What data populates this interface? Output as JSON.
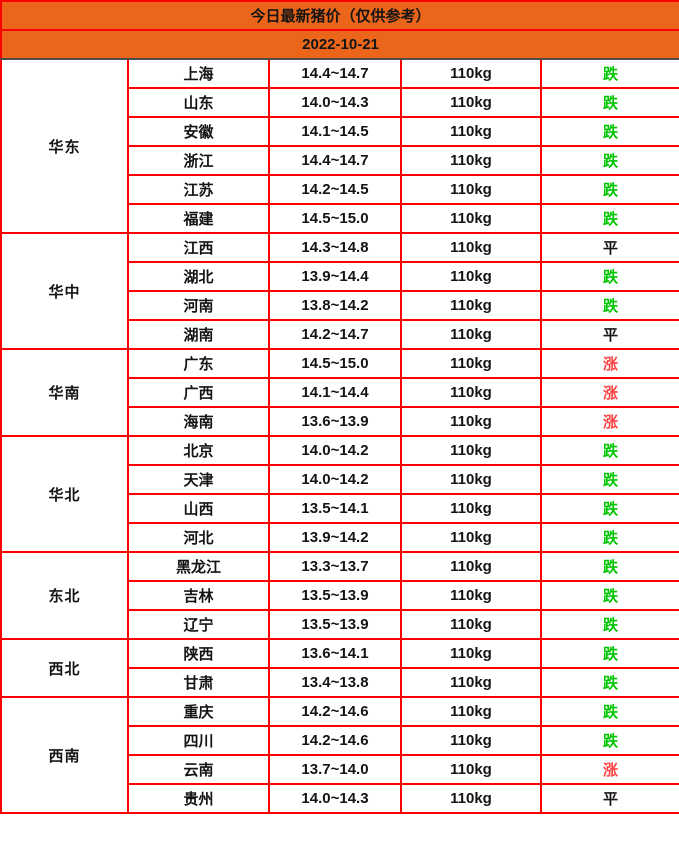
{
  "header": {
    "title": "今日最新猪价（仅供参考）",
    "date": "2022-10-21"
  },
  "colors": {
    "header_bg": "#EB661B",
    "border": "#FE0000",
    "date_divider": "#4D4D4D",
    "text": "#141414",
    "down": "#00C400",
    "up": "#FE4242",
    "flat": "#141414"
  },
  "chart_data": {
    "type": "table",
    "title": "今日最新猪价（仅供参考）",
    "date": "2022-10-21",
    "weight_unit": "110kg",
    "trend_legend": {
      "down": "跌",
      "up": "涨",
      "flat": "平"
    },
    "regions": [
      {
        "name": "华东",
        "rows": [
          {
            "province": "上海",
            "price": "14.4~14.7",
            "weight": "110kg",
            "trend": "跌",
            "trend_type": "down"
          },
          {
            "province": "山东",
            "price": "14.0~14.3",
            "weight": "110kg",
            "trend": "跌",
            "trend_type": "down"
          },
          {
            "province": "安徽",
            "price": "14.1~14.5",
            "weight": "110kg",
            "trend": "跌",
            "trend_type": "down"
          },
          {
            "province": "浙江",
            "price": "14.4~14.7",
            "weight": "110kg",
            "trend": "跌",
            "trend_type": "down"
          },
          {
            "province": "江苏",
            "price": "14.2~14.5",
            "weight": "110kg",
            "trend": "跌",
            "trend_type": "down"
          },
          {
            "province": "福建",
            "price": "14.5~15.0",
            "weight": "110kg",
            "trend": "跌",
            "trend_type": "down"
          }
        ]
      },
      {
        "name": "华中",
        "rows": [
          {
            "province": "江西",
            "price": "14.3~14.8",
            "weight": "110kg",
            "trend": "平",
            "trend_type": "flat"
          },
          {
            "province": "湖北",
            "price": "13.9~14.4",
            "weight": "110kg",
            "trend": "跌",
            "trend_type": "down"
          },
          {
            "province": "河南",
            "price": "13.8~14.2",
            "weight": "110kg",
            "trend": "跌",
            "trend_type": "down"
          },
          {
            "province": "湖南",
            "price": "14.2~14.7",
            "weight": "110kg",
            "trend": "平",
            "trend_type": "flat"
          }
        ]
      },
      {
        "name": "华南",
        "rows": [
          {
            "province": "广东",
            "price": "14.5~15.0",
            "weight": "110kg",
            "trend": "涨",
            "trend_type": "up"
          },
          {
            "province": "广西",
            "price": "14.1~14.4",
            "weight": "110kg",
            "trend": "涨",
            "trend_type": "up"
          },
          {
            "province": "海南",
            "price": "13.6~13.9",
            "weight": "110kg",
            "trend": "涨",
            "trend_type": "up"
          }
        ]
      },
      {
        "name": "华北",
        "rows": [
          {
            "province": "北京",
            "price": "14.0~14.2",
            "weight": "110kg",
            "trend": "跌",
            "trend_type": "down"
          },
          {
            "province": "天津",
            "price": "14.0~14.2",
            "weight": "110kg",
            "trend": "跌",
            "trend_type": "down"
          },
          {
            "province": "山西",
            "price": "13.5~14.1",
            "weight": "110kg",
            "trend": "跌",
            "trend_type": "down"
          },
          {
            "province": "河北",
            "price": "13.9~14.2",
            "weight": "110kg",
            "trend": "跌",
            "trend_type": "down"
          }
        ]
      },
      {
        "name": "东北",
        "rows": [
          {
            "province": "黑龙江",
            "price": "13.3~13.7",
            "weight": "110kg",
            "trend": "跌",
            "trend_type": "down"
          },
          {
            "province": "吉林",
            "price": "13.5~13.9",
            "weight": "110kg",
            "trend": "跌",
            "trend_type": "down"
          },
          {
            "province": "辽宁",
            "price": "13.5~13.9",
            "weight": "110kg",
            "trend": "跌",
            "trend_type": "down"
          }
        ]
      },
      {
        "name": "西北",
        "rows": [
          {
            "province": "陕西",
            "price": "13.6~14.1",
            "weight": "110kg",
            "trend": "跌",
            "trend_type": "down"
          },
          {
            "province": "甘肃",
            "price": "13.4~13.8",
            "weight": "110kg",
            "trend": "跌",
            "trend_type": "down"
          }
        ]
      },
      {
        "name": "西南",
        "rows": [
          {
            "province": "重庆",
            "price": "14.2~14.6",
            "weight": "110kg",
            "trend": "跌",
            "trend_type": "down"
          },
          {
            "province": "四川",
            "price": "14.2~14.6",
            "weight": "110kg",
            "trend": "跌",
            "trend_type": "down"
          },
          {
            "province": "云南",
            "price": "13.7~14.0",
            "weight": "110kg",
            "trend": "涨",
            "trend_type": "up"
          },
          {
            "province": "贵州",
            "price": "14.0~14.3",
            "weight": "110kg",
            "trend": "平",
            "trend_type": "flat"
          }
        ]
      }
    ]
  }
}
